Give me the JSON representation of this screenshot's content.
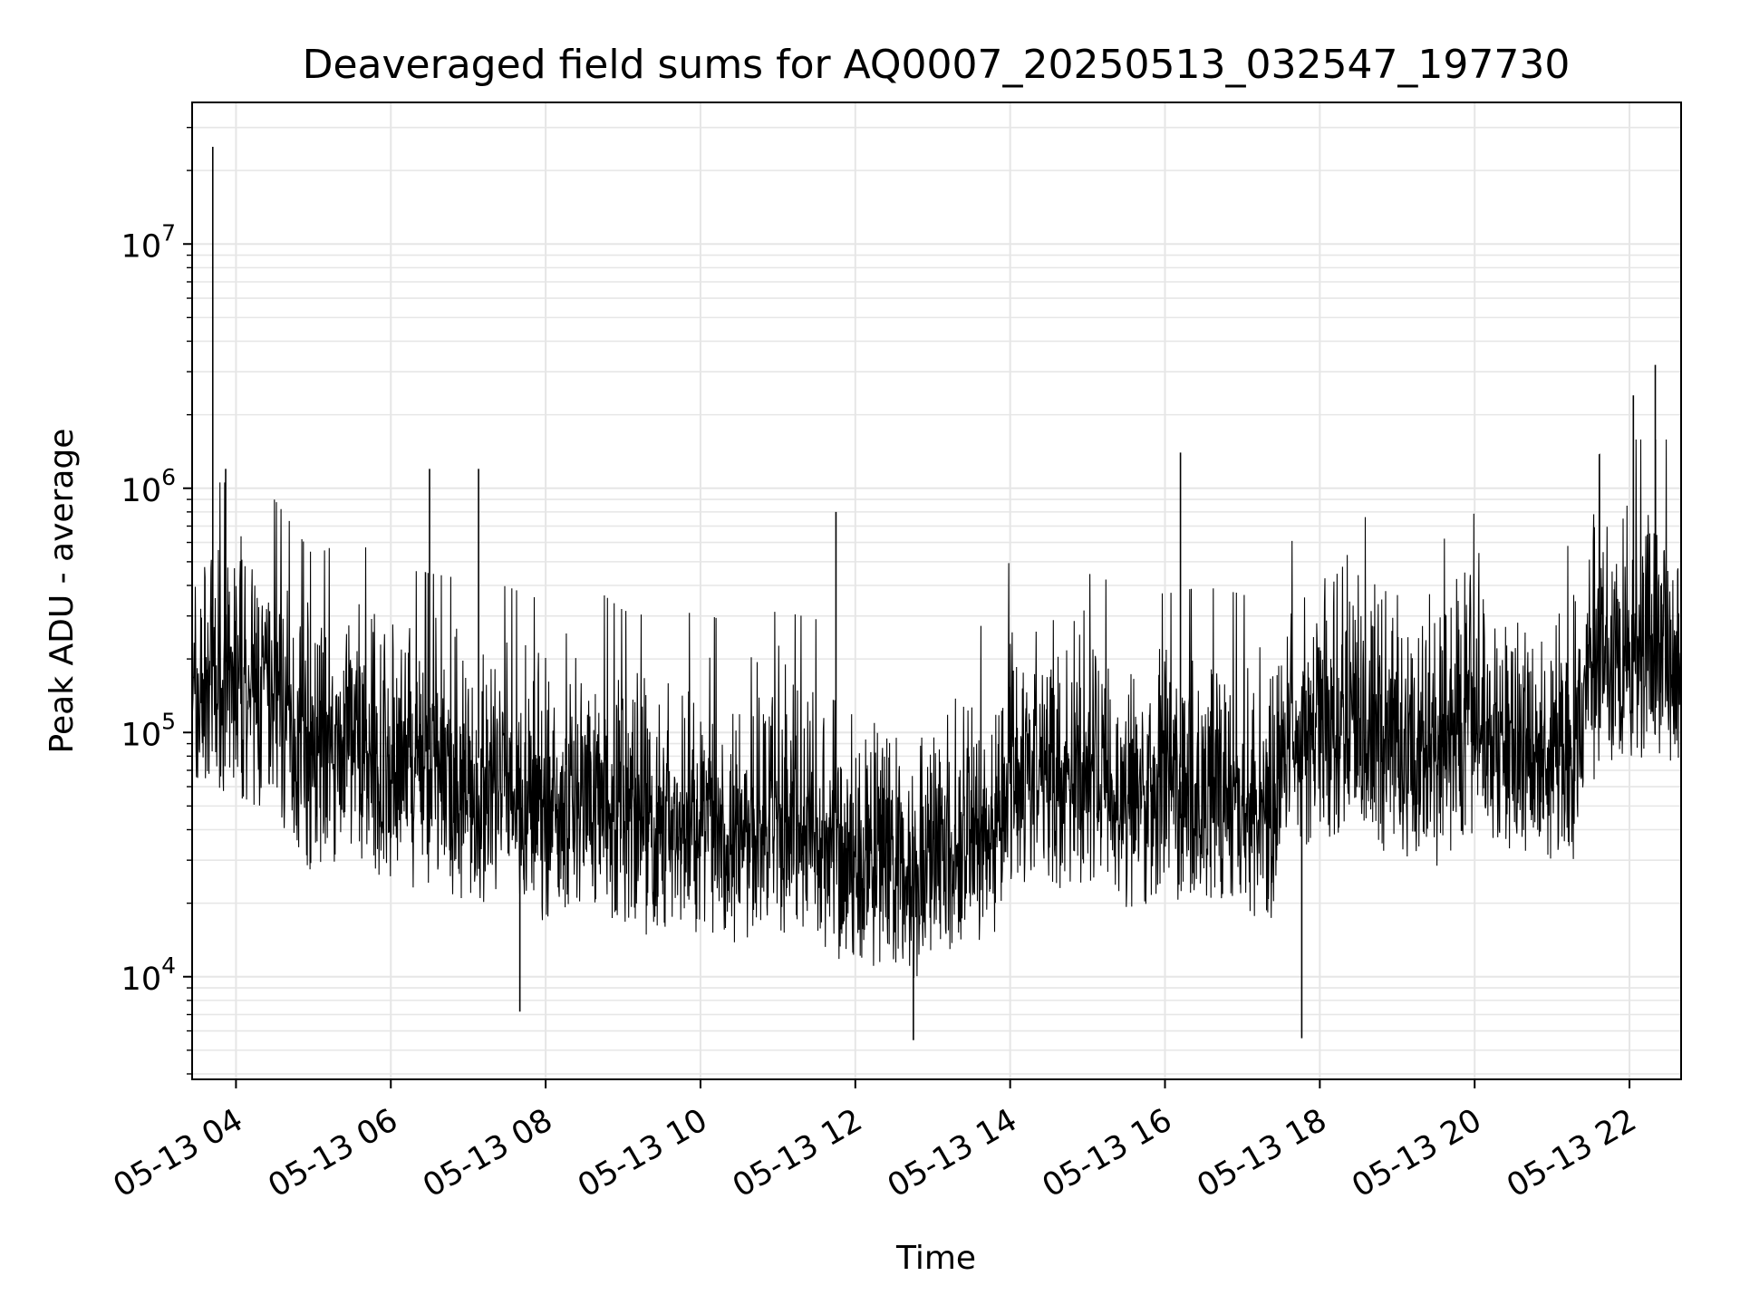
{
  "chart_data": {
    "type": "line",
    "title": "Deaveraged field sums for AQ0007_20250513_032547_197730",
    "xlabel": "Time",
    "ylabel": "Peak ADU - average",
    "yscale": "log",
    "ylim": [
      3800,
      38000000
    ],
    "xlim": [
      "05-13 03:26",
      "05-13 22:40"
    ],
    "grid": true,
    "line_color": "#000000",
    "grid_color": "#e6e6e6",
    "x_ticks": [
      "05-13 04",
      "05-13 06",
      "05-13 08",
      "05-13 10",
      "05-13 12",
      "05-13 14",
      "05-13 16",
      "05-13 18",
      "05-13 20",
      "05-13 22"
    ],
    "y_ticks": [
      {
        "base": "10",
        "exp": "4"
      },
      {
        "base": "10",
        "exp": "5"
      },
      {
        "base": "10",
        "exp": "6"
      },
      {
        "base": "10",
        "exp": "7"
      }
    ],
    "series": [
      {
        "x": [
          "05-13 03:26",
          "05-13 03:45",
          "05-13 04:00",
          "05-13 04:30",
          "05-13 05:00",
          "05-13 05:30",
          "05-13 06:00",
          "05-13 06:30",
          "05-13 07:00",
          "05-13 07:30",
          "05-13 08:00",
          "05-13 08:30",
          "05-13 09:00",
          "05-13 09:30",
          "05-13 10:00",
          "05-13 10:30",
          "05-13 11:00",
          "05-13 11:30",
          "05-13 12:00",
          "05-13 12:30",
          "05-13 13:00",
          "05-13 13:30",
          "05-13 13:50",
          "05-13 14:00",
          "05-13 14:30",
          "05-13 15:00",
          "05-13 15:30",
          "05-13 16:00",
          "05-13 16:30",
          "05-13 17:00",
          "05-13 17:20",
          "05-13 17:30",
          "05-13 18:00",
          "05-13 18:30",
          "05-13 19:00",
          "05-13 19:30",
          "05-13 20:00",
          "05-13 20:30",
          "05-13 21:00",
          "05-13 21:20",
          "05-13 21:30",
          "05-13 22:00",
          "05-13 22:40"
        ],
        "y": [
          180000,
          200000,
          200000,
          170000,
          100000,
          120000,
          90000,
          85000,
          80000,
          75000,
          65000,
          80000,
          60000,
          55000,
          60000,
          50000,
          60000,
          55000,
          40000,
          35000,
          40000,
          50000,
          55000,
          100000,
          90000,
          85000,
          75000,
          70000,
          75000,
          70000,
          60000,
          110000,
          130000,
          150000,
          120000,
          110000,
          150000,
          120000,
          110000,
          110000,
          250000,
          300000,
          300000
        ],
        "noise_low": 0.25,
        "noise_high": 4.0,
        "spikes": [
          {
            "x": "05-13 03:42",
            "y": 25000000
          },
          {
            "x": "05-13 03:52",
            "y": 1200000
          },
          {
            "x": "05-13 06:30",
            "y": 1200000
          },
          {
            "x": "05-13 07:08",
            "y": 1200000
          },
          {
            "x": "05-13 11:45",
            "y": 800000
          },
          {
            "x": "05-13 16:12",
            "y": 1400000
          },
          {
            "x": "05-13 22:20",
            "y": 3200000
          },
          {
            "x": "05-13 22:03",
            "y": 2400000
          },
          {
            "x": "05-13 12:45",
            "y": 5500
          },
          {
            "x": "05-13 17:46",
            "y": 5600
          },
          {
            "x": "05-13 07:40",
            "y": 7200
          }
        ]
      }
    ]
  }
}
